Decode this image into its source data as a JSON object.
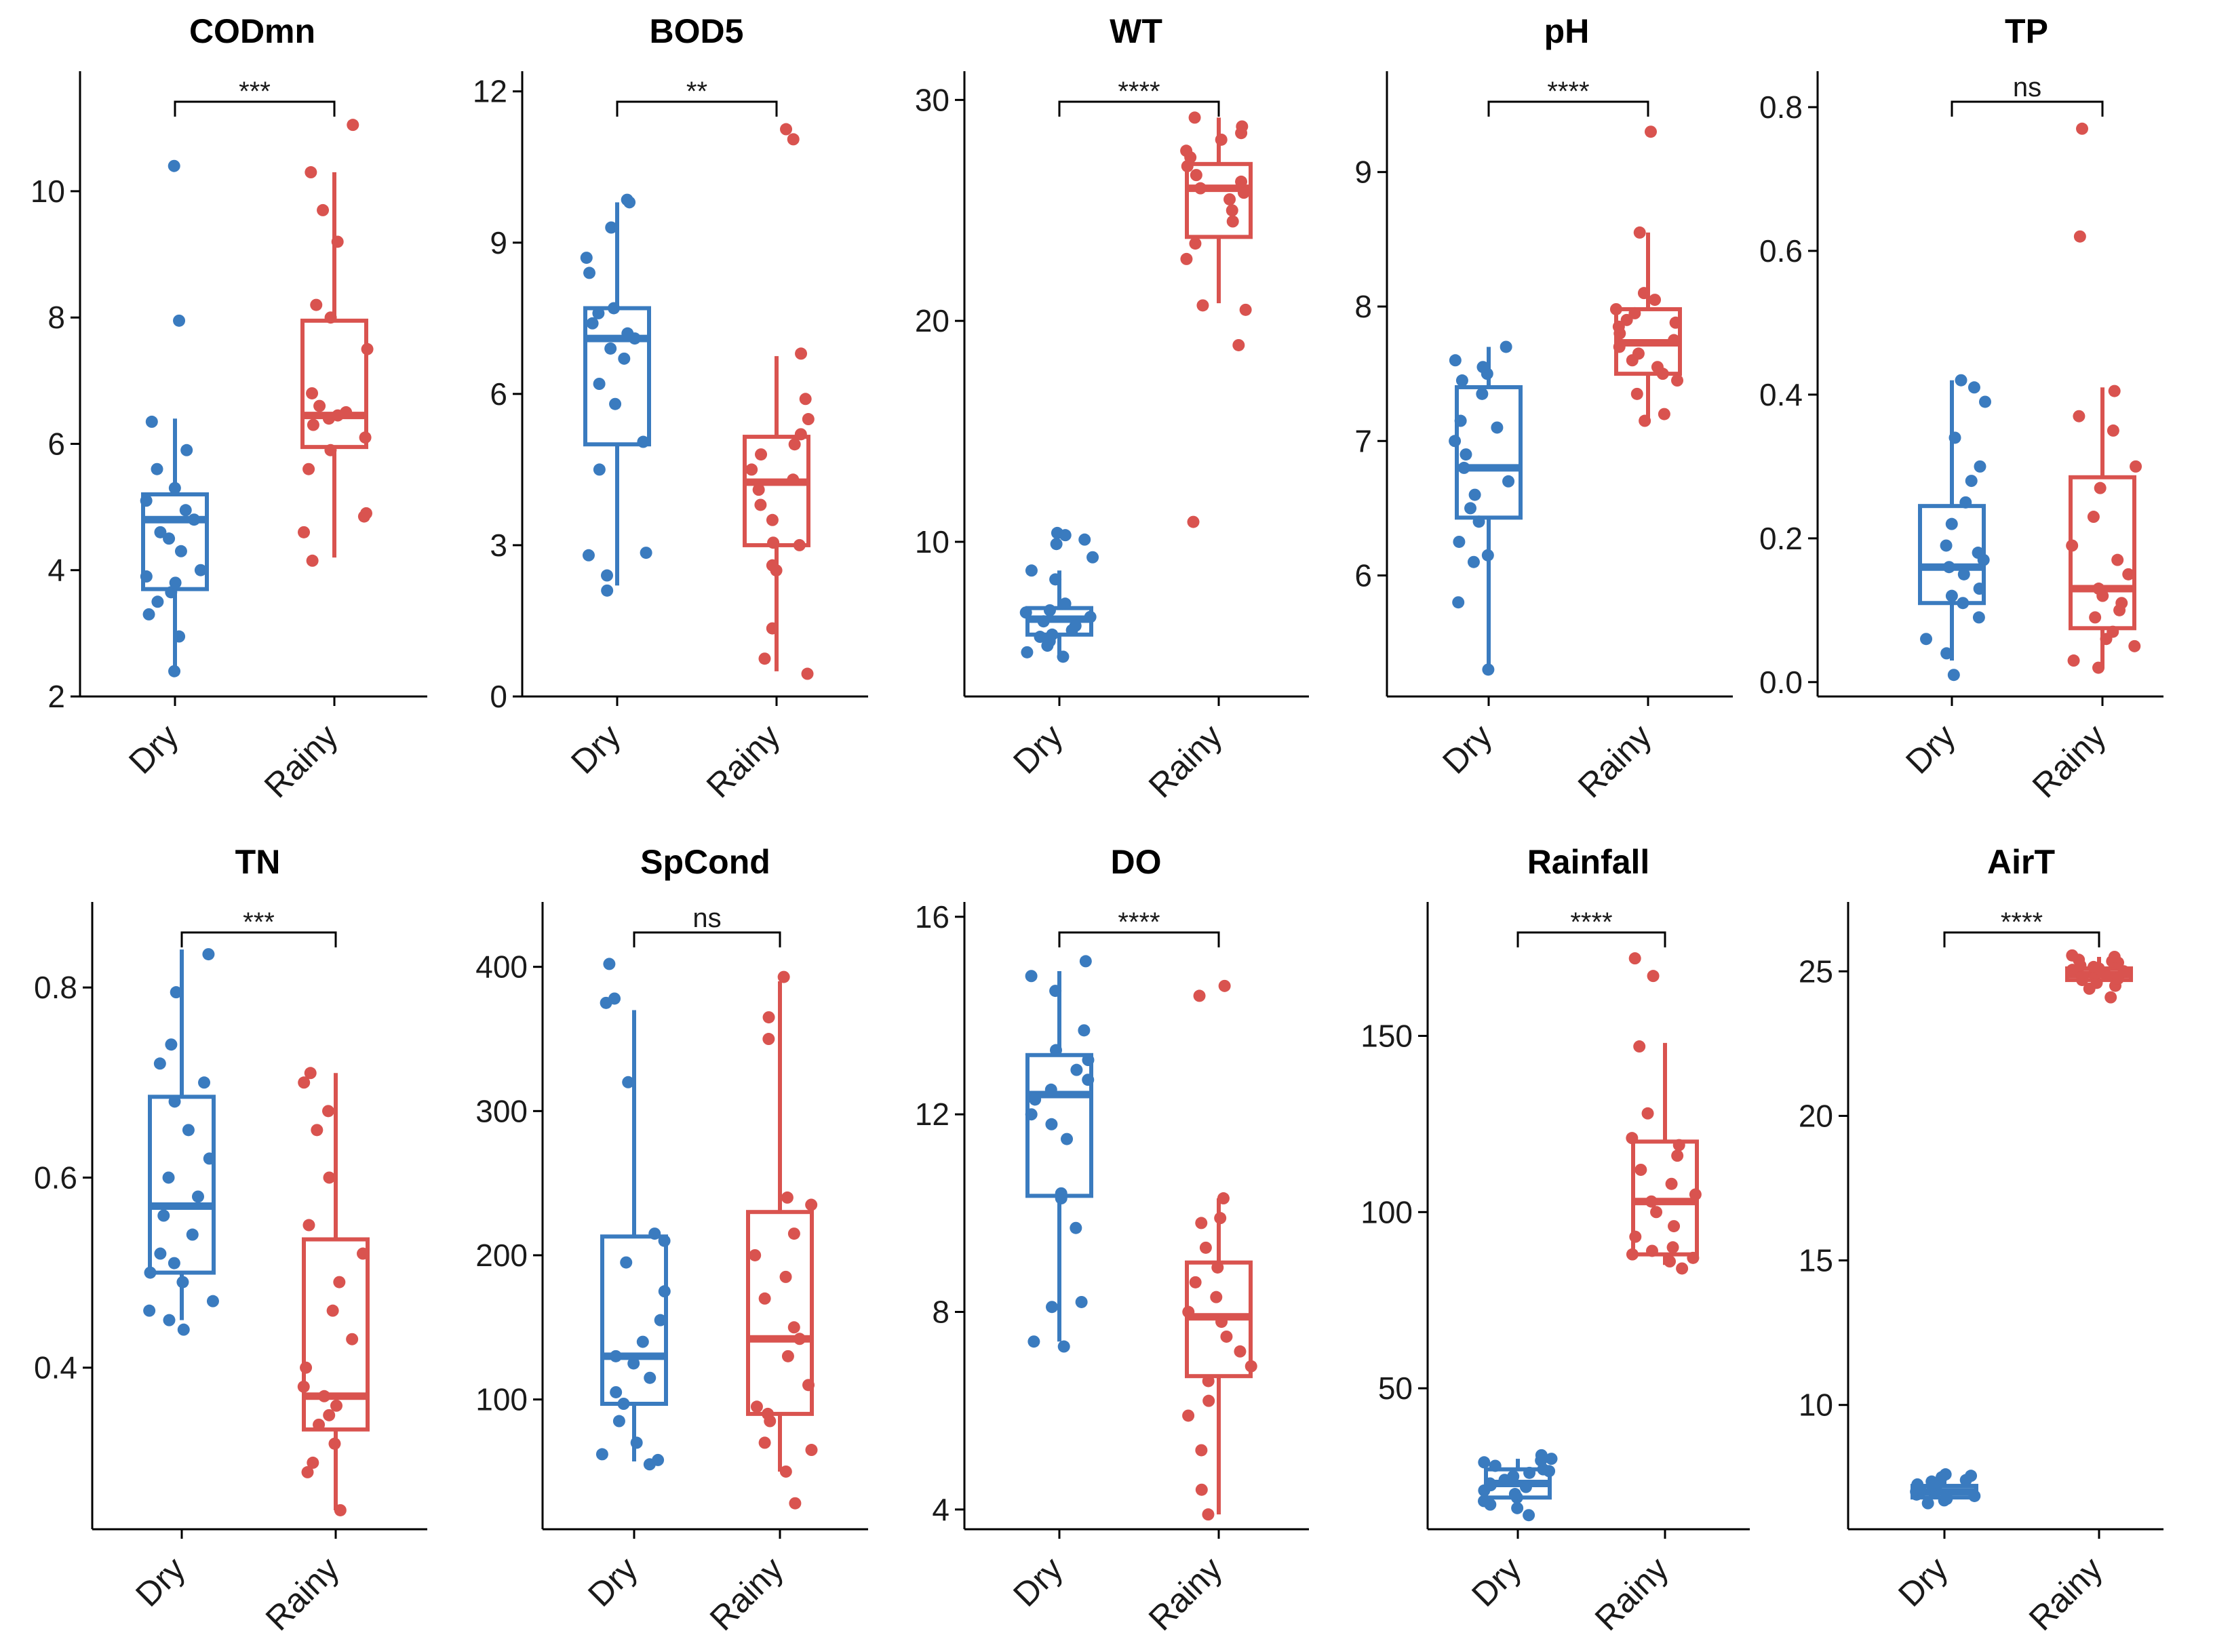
{
  "colors": {
    "Dry": "#3a7bbf",
    "Rainy": "#d9534f"
  },
  "chart_data": [
    {
      "type": "box",
      "title": "CODmn",
      "categories": [
        "Dry",
        "Rainy"
      ],
      "ylim": [
        2,
        11.9
      ],
      "yticks": [
        2,
        4,
        6,
        8,
        10
      ],
      "significance": "***",
      "boxes": [
        {
          "q1": 3.7,
          "median": 4.8,
          "q3": 5.2,
          "whislo": 2.4,
          "whishi": 6.4
        },
        {
          "q1": 5.95,
          "median": 6.45,
          "q3": 7.95,
          "whislo": 4.2,
          "whishi": 10.3
        }
      ],
      "points": [
        [
          2.4,
          2.95,
          3.3,
          3.5,
          3.65,
          3.8,
          3.9,
          4.0,
          4.3,
          4.5,
          4.6,
          4.8,
          4.95,
          5.1,
          5.3,
          5.6,
          5.9,
          6.35,
          7.95,
          10.4
        ],
        [
          4.15,
          4.6,
          4.85,
          4.9,
          5.6,
          5.9,
          6.1,
          6.3,
          6.4,
          6.45,
          6.5,
          6.6,
          6.8,
          7.5,
          8.0,
          8.2,
          9.2,
          9.7,
          10.3,
          11.05
        ]
      ]
    },
    {
      "type": "box",
      "title": "BOD5",
      "categories": [
        "Dry",
        "Rainy"
      ],
      "ylim": [
        0,
        12.4
      ],
      "yticks": [
        0,
        3,
        6,
        9,
        12
      ],
      "significance": "**",
      "boxes": [
        {
          "q1": 5.0,
          "median": 7.1,
          "q3": 7.7,
          "whislo": 2.2,
          "whishi": 9.8
        },
        {
          "q1": 3.0,
          "median": 4.25,
          "q3": 5.15,
          "whislo": 0.5,
          "whishi": 6.75
        }
      ],
      "points": [
        [
          2.1,
          2.4,
          2.8,
          2.85,
          4.5,
          5.05,
          5.8,
          6.2,
          6.7,
          6.9,
          7.1,
          7.2,
          7.4,
          7.6,
          7.7,
          8.4,
          8.7,
          9.3,
          9.8,
          9.85
        ],
        [
          0.45,
          0.75,
          1.35,
          2.5,
          2.6,
          3.0,
          3.05,
          3.5,
          3.8,
          4.1,
          4.3,
          4.5,
          4.8,
          5.0,
          5.2,
          5.5,
          5.9,
          6.8,
          11.05,
          11.25
        ]
      ]
    },
    {
      "type": "box",
      "title": "WT",
      "categories": [
        "Dry",
        "Rainy"
      ],
      "ylim": [
        3,
        31.3
      ],
      "yticks": [
        10,
        20,
        30
      ],
      "significance": "****",
      "boxes": [
        {
          "q1": 5.8,
          "median": 6.5,
          "q3": 7.0,
          "whislo": 4.9,
          "whishi": 8.7
        },
        {
          "q1": 23.8,
          "median": 26.0,
          "q3": 27.1,
          "whislo": 20.8,
          "whishi": 29.2
        }
      ],
      "points": [
        [
          4.8,
          5.0,
          5.3,
          5.5,
          5.7,
          5.8,
          6.0,
          6.2,
          6.4,
          6.6,
          6.8,
          6.9,
          7.2,
          8.3,
          8.7,
          9.3,
          9.9,
          10.1,
          10.3,
          10.4
        ],
        [
          10.9,
          18.9,
          20.5,
          20.7,
          22.8,
          23.5,
          24.5,
          25.0,
          25.5,
          25.8,
          26.0,
          26.3,
          26.6,
          27.0,
          27.4,
          27.7,
          28.2,
          28.5,
          28.8,
          29.2
        ]
      ]
    },
    {
      "type": "box",
      "title": "pH",
      "categories": [
        "Dry",
        "Rainy"
      ],
      "ylim": [
        5.1,
        9.75
      ],
      "yticks": [
        6,
        7,
        8,
        9
      ],
      "significance": "****",
      "boxes": [
        {
          "q1": 6.43,
          "median": 6.8,
          "q3": 7.4,
          "whislo": 5.3,
          "whishi": 7.7
        },
        {
          "q1": 7.5,
          "median": 7.73,
          "q3": 7.98,
          "whislo": 7.15,
          "whishi": 8.55
        }
      ],
      "points": [
        [
          5.3,
          5.8,
          6.1,
          6.15,
          6.25,
          6.4,
          6.5,
          6.6,
          6.7,
          6.8,
          6.9,
          7.0,
          7.1,
          7.15,
          7.35,
          7.45,
          7.5,
          7.55,
          7.6,
          7.7
        ],
        [
          7.15,
          7.2,
          7.35,
          7.45,
          7.5,
          7.55,
          7.6,
          7.65,
          7.7,
          7.75,
          7.8,
          7.85,
          7.9,
          7.95,
          7.98,
          8.05,
          8.1,
          8.55,
          9.3,
          7.88
        ]
      ]
    },
    {
      "type": "box",
      "title": "TP",
      "categories": [
        "Dry",
        "Rainy"
      ],
      "ylim": [
        -0.02,
        0.85
      ],
      "yticks": [
        0.0,
        0.2,
        0.4,
        0.6,
        0.8
      ],
      "significance": "ns",
      "boxes": [
        {
          "q1": 0.11,
          "median": 0.16,
          "q3": 0.245,
          "whislo": 0.03,
          "whishi": 0.42
        },
        {
          "q1": 0.075,
          "median": 0.13,
          "q3": 0.285,
          "whislo": 0.02,
          "whishi": 0.41
        }
      ],
      "points": [
        [
          0.01,
          0.04,
          0.06,
          0.09,
          0.11,
          0.12,
          0.13,
          0.15,
          0.16,
          0.17,
          0.18,
          0.19,
          0.22,
          0.25,
          0.28,
          0.3,
          0.34,
          0.39,
          0.42,
          0.41
        ],
        [
          0.02,
          0.03,
          0.05,
          0.06,
          0.07,
          0.09,
          0.1,
          0.11,
          0.12,
          0.13,
          0.15,
          0.17,
          0.19,
          0.23,
          0.27,
          0.3,
          0.35,
          0.37,
          0.405,
          0.62,
          0.77
        ]
      ]
    },
    {
      "type": "box",
      "title": "TN",
      "categories": [
        "Dry",
        "Rainy"
      ],
      "ylim": [
        0.23,
        0.89
      ],
      "yticks": [
        0.4,
        0.6,
        0.8
      ],
      "significance": "***",
      "boxes": [
        {
          "q1": 0.5,
          "median": 0.57,
          "q3": 0.685,
          "whislo": 0.45,
          "whishi": 0.84
        },
        {
          "q1": 0.335,
          "median": 0.37,
          "q3": 0.535,
          "whislo": 0.25,
          "whishi": 0.71
        }
      ],
      "points": [
        [
          0.44,
          0.45,
          0.46,
          0.47,
          0.49,
          0.5,
          0.51,
          0.52,
          0.54,
          0.56,
          0.58,
          0.6,
          0.62,
          0.65,
          0.68,
          0.7,
          0.72,
          0.74,
          0.795,
          0.835
        ],
        [
          0.25,
          0.29,
          0.3,
          0.32,
          0.34,
          0.35,
          0.36,
          0.37,
          0.38,
          0.4,
          0.43,
          0.46,
          0.49,
          0.52,
          0.55,
          0.6,
          0.65,
          0.67,
          0.7,
          0.71
        ]
      ]
    },
    {
      "type": "box",
      "title": "SpCond",
      "categories": [
        "Dry",
        "Rainy"
      ],
      "ylim": [
        10,
        445
      ],
      "yticks": [
        100,
        200,
        300,
        400
      ],
      "significance": "ns",
      "boxes": [
        {
          "q1": 97,
          "median": 130,
          "q3": 213,
          "whislo": 57,
          "whishi": 370
        },
        {
          "q1": 90,
          "median": 142,
          "q3": 230,
          "whislo": 50,
          "whishi": 390
        }
      ],
      "points": [
        [
          55,
          58,
          62,
          70,
          85,
          97,
          105,
          115,
          125,
          130,
          140,
          155,
          175,
          195,
          210,
          215,
          320,
          375,
          378,
          402
        ],
        [
          28,
          50,
          65,
          70,
          85,
          90,
          95,
          110,
          130,
          142,
          150,
          170,
          185,
          200,
          215,
          235,
          240,
          350,
          365,
          393
        ]
      ]
    },
    {
      "type": "box",
      "title": "DO",
      "categories": [
        "Dry",
        "Rainy"
      ],
      "ylim": [
        3.6,
        16.3
      ],
      "yticks": [
        4,
        8,
        12,
        16
      ],
      "significance": "****",
      "boxes": [
        {
          "q1": 10.35,
          "median": 12.4,
          "q3": 13.2,
          "whislo": 7.4,
          "whishi": 14.9
        },
        {
          "q1": 6.7,
          "median": 7.9,
          "q3": 9.0,
          "whislo": 3.9,
          "whishi": 10.3
        }
      ],
      "points": [
        [
          7.3,
          7.4,
          8.1,
          8.2,
          9.7,
          10.3,
          10.4,
          11.5,
          11.8,
          12.0,
          12.3,
          12.5,
          12.7,
          12.9,
          13.1,
          13.3,
          13.7,
          14.5,
          14.8,
          15.1
        ],
        [
          3.9,
          4.4,
          5.2,
          5.9,
          6.2,
          6.6,
          6.9,
          7.2,
          7.5,
          7.8,
          8.0,
          8.3,
          8.6,
          8.9,
          9.3,
          9.8,
          9.9,
          10.3,
          14.4,
          14.6
        ]
      ]
    },
    {
      "type": "box",
      "title": "Rainfall",
      "categories": [
        "Dry",
        "Rainy"
      ],
      "ylim": [
        10,
        188
      ],
      "yticks": [
        50,
        100,
        150
      ],
      "significance": "****",
      "boxes": [
        {
          "q1": 19,
          "median": 23,
          "q3": 27,
          "whislo": 15,
          "whishi": 30
        },
        {
          "q1": 88,
          "median": 103,
          "q3": 120,
          "whislo": 85,
          "whishi": 148
        }
      ],
      "points": [
        [
          14,
          16,
          17,
          18,
          19,
          20,
          21,
          22,
          22.5,
          23,
          24,
          25,
          26,
          26.5,
          27,
          28,
          29,
          29.5,
          30,
          31
        ],
        [
          84,
          86,
          87,
          88,
          89,
          90,
          93,
          96,
          100,
          103,
          105,
          108,
          112,
          116,
          119,
          121,
          128,
          147,
          167,
          172
        ]
      ]
    },
    {
      "type": "box",
      "title": "AirT",
      "categories": [
        "Dry",
        "Rainy"
      ],
      "ylim": [
        5.7,
        27.4
      ],
      "yticks": [
        10,
        15,
        20,
        25
      ],
      "significance": "****",
      "boxes": [
        {
          "q1": 6.8,
          "median": 7.0,
          "q3": 7.2,
          "whislo": 6.7,
          "whishi": 7.6
        },
        {
          "q1": 24.7,
          "median": 24.9,
          "q3": 25.1,
          "whislo": 24.5,
          "whishi": 25.5
        }
      ],
      "points": [
        [
          6.6,
          6.7,
          6.75,
          6.8,
          6.85,
          6.9,
          6.95,
          7.0,
          7.0,
          7.05,
          7.1,
          7.15,
          7.2,
          7.25,
          7.3,
          7.35,
          7.4,
          7.5,
          7.6,
          7.55
        ],
        [
          24.1,
          24.4,
          24.5,
          24.6,
          24.7,
          24.75,
          24.8,
          24.85,
          24.9,
          24.95,
          25.0,
          25.05,
          25.1,
          25.15,
          25.2,
          25.3,
          25.35,
          25.4,
          25.5,
          25.55
        ]
      ]
    }
  ]
}
